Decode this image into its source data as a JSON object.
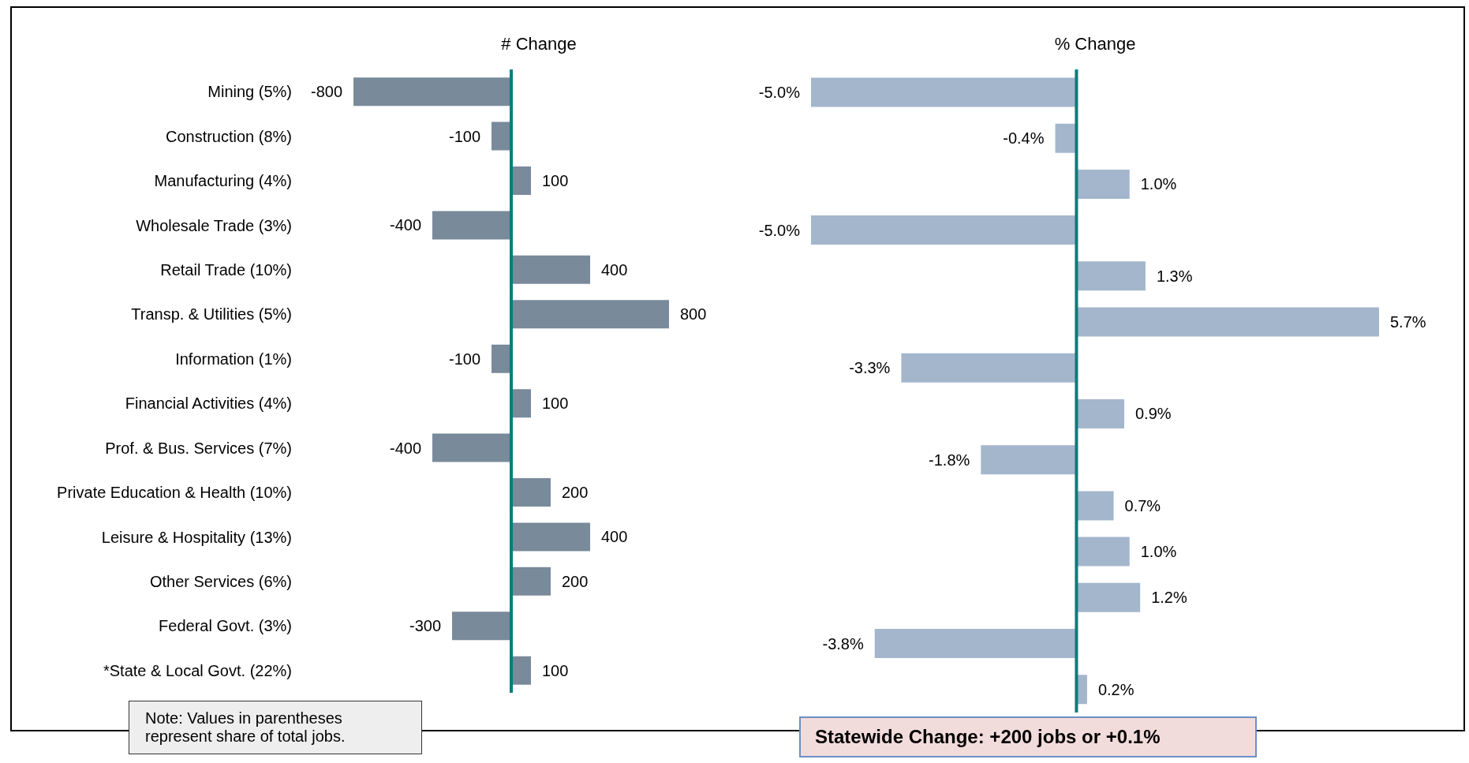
{
  "chart_data": [
    {
      "type": "bar",
      "orientation": "horizontal",
      "title": "# Change",
      "categories": [
        "Mining (5%)",
        "Construction (8%)",
        "Manufacturing (4%)",
        "Wholesale Trade (3%)",
        "Retail Trade (10%)",
        "Transp. & Utilities (5%)",
        "Information (1%)",
        "Financial Activities (4%)",
        "Prof. & Bus. Services (7%)",
        "Private Education & Health (10%)",
        "Leisure & Hospitality (13%)",
        "Other Services (6%)",
        "Federal Govt. (3%)",
        "*State & Local Govt. (22%)"
      ],
      "values": [
        -800,
        -100,
        100,
        -400,
        400,
        800,
        -100,
        100,
        -400,
        200,
        400,
        200,
        -300,
        100
      ],
      "color": "#798a9a",
      "data_labels": true,
      "ref_lines": [
        {
          "axis": "x",
          "value": 0,
          "color": "#00807a"
        }
      ],
      "annotations": [
        "Note: Values in parentheses represent share of total jobs."
      ]
    },
    {
      "type": "bar",
      "orientation": "horizontal",
      "title": "% Change",
      "categories": [
        null,
        null,
        null,
        null,
        null,
        null,
        null,
        null,
        null,
        null,
        null,
        null,
        null,
        null
      ],
      "values": [
        -5.0,
        -0.4,
        1.0,
        -5.0,
        1.3,
        5.7,
        -3.3,
        0.9,
        -1.8,
        0.7,
        1.0,
        1.2,
        -3.8,
        0.2
      ],
      "color": "#a3b6cc",
      "value_labels": [
        "-5.0%",
        "-0.4%",
        "1.0%",
        "-5.0%",
        "1.3%",
        "5.7%",
        "-3.3%",
        "0.9%",
        "-1.8%",
        "0.7%",
        "1.0%",
        "1.2%",
        "-3.8%",
        "0.2%"
      ],
      "ref_lines": [
        {
          "axis": "x",
          "value": 0,
          "color": "#00807a"
        }
      ],
      "annotations": [
        "Statewide Change: +200 jobs or +0.1%"
      ]
    }
  ]
}
